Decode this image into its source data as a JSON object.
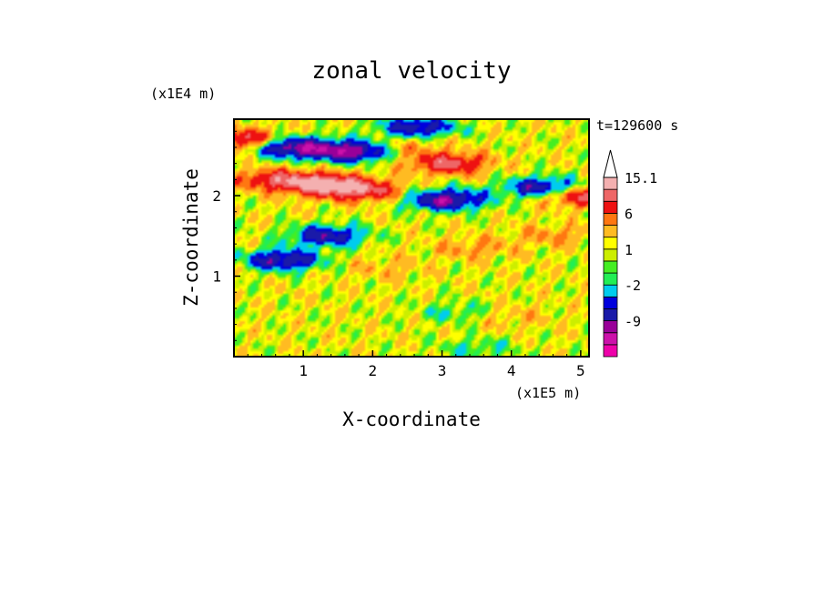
{
  "chart_data": {
    "type": "heatmap",
    "title": "zonal velocity",
    "xlabel": "X-coordinate",
    "ylabel": "Z-coordinate",
    "x_unit": "(x1E5 m)",
    "y_unit": "(x1E4 m)",
    "time_label": "t=129600 s",
    "xlim": [
      0,
      5.12
    ],
    "ylim": [
      0,
      2.95
    ],
    "x_ticks": [
      "1",
      "2",
      "3",
      "4",
      "5"
    ],
    "y_ticks": [
      "1",
      "2"
    ],
    "colorbar": {
      "levels": [
        -15,
        -12,
        -9,
        -6,
        -4,
        -2,
        -1,
        0,
        1,
        2,
        4,
        6,
        9,
        12,
        15.1
      ],
      "colors": [
        "#ee00aa",
        "#cc11aa",
        "#990099",
        "#1a1aa8",
        "#0000dd",
        "#00ccee",
        "#22ee55",
        "#44ee22",
        "#ccee00",
        "#ffff00",
        "#ffbb22",
        "#ff7711",
        "#ee1111",
        "#ee6666",
        "#f4b0b0"
      ],
      "labels": [
        "15.1",
        "6",
        "1",
        "-2",
        "-9"
      ],
      "extend": "max"
    },
    "field_features": [
      {
        "x": 0.55,
        "z": 2.2,
        "value": 7
      },
      {
        "x": 1.2,
        "z": 2.15,
        "value": 9
      },
      {
        "x": 1.6,
        "z": 2.1,
        "value": 7
      },
      {
        "x": 2.0,
        "z": 2.05,
        "value": 5
      },
      {
        "x": 3.1,
        "z": 2.4,
        "value": 9
      },
      {
        "x": 2.5,
        "z": 2.6,
        "value": 3
      },
      {
        "x": 0.85,
        "z": 2.6,
        "value": -12
      },
      {
        "x": 1.7,
        "z": 2.55,
        "value": -12
      },
      {
        "x": 3.05,
        "z": 1.95,
        "value": -12
      },
      {
        "x": 4.45,
        "z": 2.1,
        "value": -10
      },
      {
        "x": 0.7,
        "z": 1.2,
        "value": -10
      },
      {
        "x": 1.35,
        "z": 1.5,
        "value": -9
      },
      {
        "x": 2.65,
        "z": 2.85,
        "value": -9
      },
      {
        "x": 4.6,
        "z": 1.5,
        "value": 3
      },
      {
        "x": 3.45,
        "z": 1.35,
        "value": 3
      },
      {
        "x": 2.2,
        "z": 1.1,
        "value": 2
      },
      {
        "x": 4.0,
        "z": 0.5,
        "value": 2
      },
      {
        "x": 3.5,
        "z": 0.1,
        "value": -3
      },
      {
        "x": 3.2,
        "z": 0.55,
        "value": -3
      },
      {
        "x": 0.1,
        "z": 2.7,
        "value": 9
      },
      {
        "x": 5.0,
        "z": 2.0,
        "value": 9
      }
    ]
  }
}
